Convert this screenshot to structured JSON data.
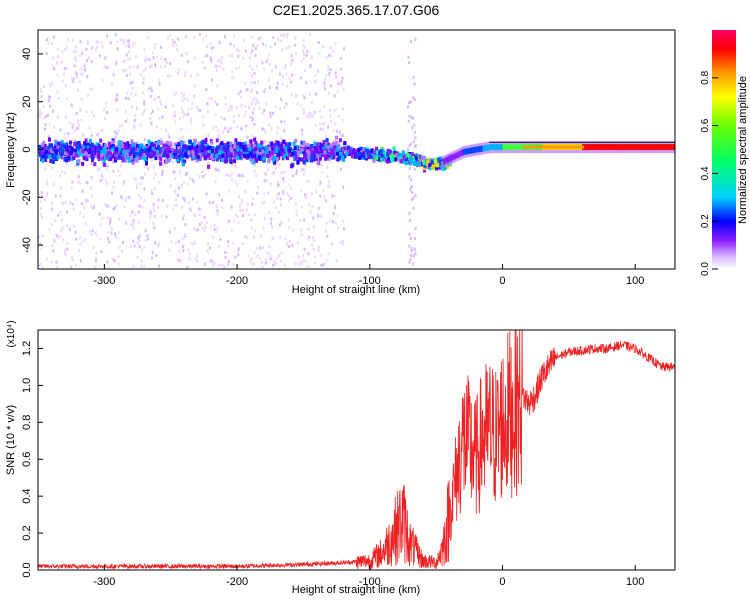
{
  "title": "C2E1.2025.365.17.07.G06",
  "chart_data": [
    {
      "type": "heatmap",
      "title": "",
      "xlabel": "Height of straight line (km)",
      "ylabel": "Frequency (Hz)",
      "xlim": [
        -350,
        130
      ],
      "ylim": [
        -50,
        50
      ],
      "xticks": [
        -300,
        -200,
        -100,
        0,
        100
      ],
      "yticks": [
        -40,
        -20,
        0,
        20,
        40
      ],
      "trend_center_hz": [
        {
          "x": -350,
          "y": 0
        },
        {
          "x": -120,
          "y": 0
        },
        {
          "x": -80,
          "y": -2
        },
        {
          "x": -55,
          "y": -5
        },
        {
          "x": -45,
          "y": -5
        },
        {
          "x": -30,
          "y": -1
        },
        {
          "x": -10,
          "y": 1
        },
        {
          "x": 10,
          "y": 1
        },
        {
          "x": 130,
          "y": 1
        }
      ],
      "colorbar": {
        "label": "Normalized spectral amplitude",
        "range": [
          0.0,
          1.0
        ],
        "ticks": [
          0.0,
          0.2,
          0.4,
          0.6,
          0.8
        ],
        "colors": [
          "#ffffff",
          "#8a1cff",
          "#0000ff",
          "#00d2ff",
          "#00ff66",
          "#6aff00",
          "#ffff00",
          "#ff9900",
          "#ff0000",
          "#ff0066"
        ]
      }
    },
    {
      "type": "line",
      "title": "",
      "xlabel": "Height of straight line (km)",
      "ylabel": "SNR (10 * v/v)",
      "scale_note": "(x10⁴)",
      "xlim": [
        -350,
        130
      ],
      "ylim": [
        0.0,
        1.3
      ],
      "xticks": [
        -300,
        -200,
        -100,
        0,
        100
      ],
      "yticks": [
        0.0,
        0.2,
        0.4,
        0.6,
        0.8,
        1.0,
        1.2
      ],
      "series": [
        {
          "name": "SNR",
          "color": "#ee2222",
          "points": [
            {
              "x": -350,
              "y": 0.02
            },
            {
              "x": -300,
              "y": 0.02
            },
            {
              "x": -250,
              "y": 0.02
            },
            {
              "x": -200,
              "y": 0.02
            },
            {
              "x": -150,
              "y": 0.03
            },
            {
              "x": -120,
              "y": 0.04
            },
            {
              "x": -100,
              "y": 0.05
            },
            {
              "x": -90,
              "y": 0.1
            },
            {
              "x": -80,
              "y": 0.22
            },
            {
              "x": -75,
              "y": 0.28
            },
            {
              "x": -70,
              "y": 0.15
            },
            {
              "x": -60,
              "y": 0.05
            },
            {
              "x": -50,
              "y": 0.04
            },
            {
              "x": -45,
              "y": 0.12
            },
            {
              "x": -40,
              "y": 0.3
            },
            {
              "x": -35,
              "y": 0.5
            },
            {
              "x": -30,
              "y": 0.7
            },
            {
              "x": -25,
              "y": 0.68
            },
            {
              "x": -20,
              "y": 0.6
            },
            {
              "x": -15,
              "y": 0.72
            },
            {
              "x": -10,
              "y": 0.75
            },
            {
              "x": -5,
              "y": 0.72
            },
            {
              "x": 0,
              "y": 0.8
            },
            {
              "x": 5,
              "y": 0.85
            },
            {
              "x": 10,
              "y": 0.88
            },
            {
              "x": 15,
              "y": 0.95
            },
            {
              "x": 20,
              "y": 0.9
            },
            {
              "x": 25,
              "y": 0.95
            },
            {
              "x": 30,
              "y": 1.05
            },
            {
              "x": 40,
              "y": 1.15
            },
            {
              "x": 50,
              "y": 1.18
            },
            {
              "x": 60,
              "y": 1.19
            },
            {
              "x": 70,
              "y": 1.2
            },
            {
              "x": 80,
              "y": 1.2
            },
            {
              "x": 90,
              "y": 1.22
            },
            {
              "x": 100,
              "y": 1.2
            },
            {
              "x": 110,
              "y": 1.15
            },
            {
              "x": 120,
              "y": 1.1
            },
            {
              "x": 130,
              "y": 1.1
            }
          ]
        }
      ]
    }
  ]
}
